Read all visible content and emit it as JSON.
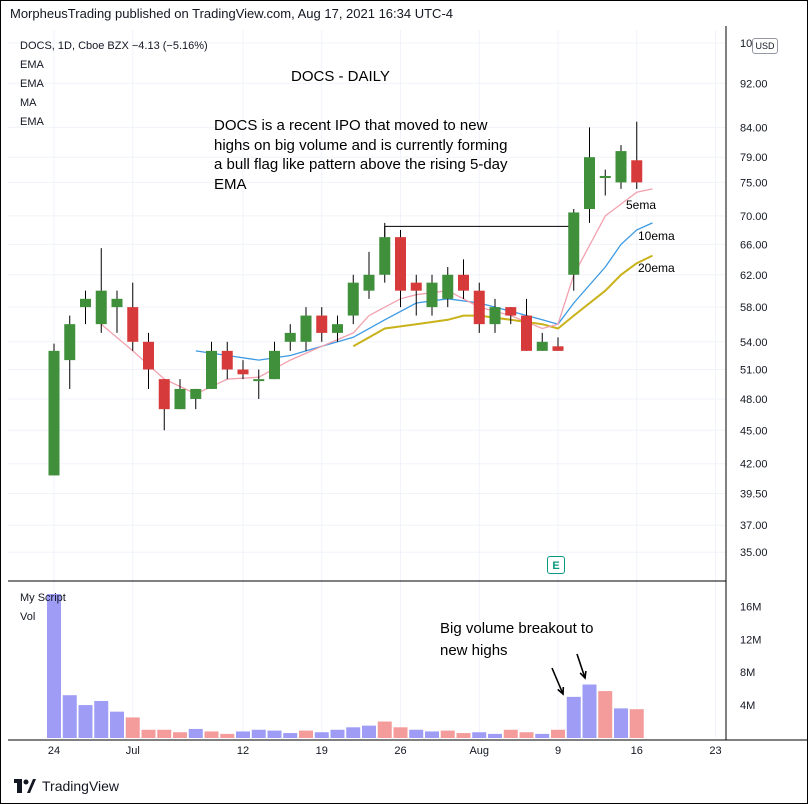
{
  "header": {
    "published": "MorpheusTrading published on TradingView.com, Aug 17, 2021 16:34 UTC-4"
  },
  "symbol": {
    "line": "DOCS, 1D, Cboe BZX  −4.13 (−5.16%)"
  },
  "indicators": [
    "EMA",
    "EMA",
    "MA",
    "EMA"
  ],
  "currency": "USD",
  "annotations": {
    "title": "DOCS - DAILY",
    "note": "DOCS is a recent IPO that moved to new highs on big volume and is currently forming a bull flag like pattern above the rising 5-day EMA",
    "volume_note": "Big volume breakout to new highs",
    "ema_labels": [
      "5ema",
      "10ema",
      "20ema"
    ]
  },
  "volume_pane": {
    "script_label": "My Script",
    "label": "Vol"
  },
  "earnings_marker": "E",
  "footer": {
    "brand": "TradingView"
  },
  "colors": {
    "up": "#3f8f3b",
    "down": "#d63a3a",
    "vol_up": "#9e9cf5",
    "vol_down": "#f49b9b",
    "ema5": "#f2a0ae",
    "ema10": "#3d9ae3",
    "ema20": "#c9b21a",
    "grid": "#f0f3fa"
  },
  "chart_data": {
    "type": "candlestick",
    "price_axis": {
      "ticks": [
        35.0,
        37.0,
        39.5,
        42.0,
        45.0,
        48.0,
        51.0,
        54.0,
        58.0,
        62.0,
        66.0,
        70.0,
        75.0,
        79.0,
        84.0,
        92.0,
        100.0
      ],
      "scale": "log"
    },
    "volume_axis": {
      "ticks": [
        "4M",
        "8M",
        "12M",
        "16M"
      ],
      "max": 17.5
    },
    "x_ticks": [
      "24",
      "Jul",
      "12",
      "19",
      "26",
      "Aug",
      "9",
      "16",
      "23"
    ],
    "x_tick_index": [
      0,
      5,
      12,
      17,
      22,
      27,
      32,
      37,
      42
    ],
    "candles": [
      {
        "o": 41,
        "h": 53.8,
        "l": 41,
        "c": 53
      },
      {
        "o": 52,
        "h": 57,
        "l": 49,
        "c": 56
      },
      {
        "o": 58,
        "h": 60,
        "l": 56,
        "c": 59
      },
      {
        "o": 56,
        "h": 65.5,
        "l": 55,
        "c": 60
      },
      {
        "o": 58,
        "h": 60,
        "l": 55,
        "c": 59
      },
      {
        "o": 58,
        "h": 61,
        "l": 53,
        "c": 54
      },
      {
        "o": 54,
        "h": 55,
        "l": 49,
        "c": 51
      },
      {
        "o": 50,
        "h": 50,
        "l": 45,
        "c": 47
      },
      {
        "o": 47,
        "h": 50,
        "l": 47,
        "c": 49
      },
      {
        "o": 48,
        "h": 49,
        "l": 47,
        "c": 49
      },
      {
        "o": 49,
        "h": 54,
        "l": 49,
        "c": 53
      },
      {
        "o": 53,
        "h": 54,
        "l": 50,
        "c": 51
      },
      {
        "o": 51,
        "h": 52,
        "l": 50,
        "c": 50.5
      },
      {
        "o": 50,
        "h": 51,
        "l": 48,
        "c": 50
      },
      {
        "o": 50,
        "h": 54,
        "l": 50,
        "c": 53
      },
      {
        "o": 54,
        "h": 56,
        "l": 53,
        "c": 55
      },
      {
        "o": 54,
        "h": 58,
        "l": 53,
        "c": 57
      },
      {
        "o": 57,
        "h": 58,
        "l": 54,
        "c": 55
      },
      {
        "o": 55,
        "h": 57,
        "l": 54,
        "c": 56
      },
      {
        "o": 57,
        "h": 62,
        "l": 56,
        "c": 61
      },
      {
        "o": 60,
        "h": 65,
        "l": 59,
        "c": 62
      },
      {
        "o": 62,
        "h": 69,
        "l": 61,
        "c": 67
      },
      {
        "o": 67,
        "h": 68,
        "l": 58,
        "c": 60
      },
      {
        "o": 61,
        "h": 62,
        "l": 57,
        "c": 60
      },
      {
        "o": 58,
        "h": 62,
        "l": 57,
        "c": 61
      },
      {
        "o": 59,
        "h": 63,
        "l": 58,
        "c": 62
      },
      {
        "o": 62,
        "h": 64,
        "l": 59,
        "c": 60
      },
      {
        "o": 60,
        "h": 61,
        "l": 55,
        "c": 56
      },
      {
        "o": 56,
        "h": 59,
        "l": 55,
        "c": 58
      },
      {
        "o": 58,
        "h": 58,
        "l": 56,
        "c": 57
      },
      {
        "o": 57,
        "h": 59,
        "l": 53,
        "c": 53
      },
      {
        "o": 53,
        "h": 55,
        "l": 53,
        "c": 54
      },
      {
        "o": 53.5,
        "h": 54.5,
        "l": 53,
        "c": 53
      },
      {
        "o": 62,
        "h": 71,
        "l": 60,
        "c": 70.5
      },
      {
        "o": 71,
        "h": 84,
        "l": 69,
        "c": 79
      },
      {
        "o": 76,
        "h": 77,
        "l": 73,
        "c": 76
      },
      {
        "o": 75,
        "h": 81,
        "l": 74,
        "c": 80
      },
      {
        "o": 78.5,
        "h": 85,
        "l": 74,
        "c": 75
      }
    ],
    "volume": [
      17.5,
      5.2,
      4.0,
      4.5,
      3.2,
      2.5,
      1.0,
      1.0,
      0.7,
      1.1,
      0.8,
      0.5,
      0.8,
      1.0,
      0.9,
      0.6,
      0.9,
      0.7,
      1.0,
      1.3,
      1.5,
      2.0,
      1.3,
      1.0,
      0.8,
      0.9,
      0.6,
      0.7,
      0.5,
      1.0,
      0.7,
      0.5,
      1.0,
      5.0,
      6.5,
      5.7,
      3.6,
      3.5
    ],
    "volume_up": [
      true,
      true,
      true,
      true,
      true,
      false,
      false,
      false,
      false,
      true,
      false,
      false,
      true,
      true,
      true,
      true,
      false,
      true,
      true,
      true,
      true,
      false,
      false,
      true,
      true,
      false,
      false,
      true,
      true,
      false,
      false,
      true,
      false,
      true,
      true,
      false,
      true,
      false
    ],
    "ema5": [
      [
        3,
        56
      ],
      [
        5,
        53
      ],
      [
        7,
        50
      ],
      [
        9,
        48.5
      ],
      [
        11,
        50
      ],
      [
        13,
        50.2
      ],
      [
        15,
        52
      ],
      [
        17,
        53.5
      ],
      [
        19,
        55
      ],
      [
        20,
        57
      ],
      [
        22,
        59
      ],
      [
        23,
        59.5
      ],
      [
        25,
        60
      ],
      [
        27,
        58
      ],
      [
        29,
        57
      ],
      [
        31,
        55.5
      ],
      [
        32,
        56
      ],
      [
        33,
        62
      ],
      [
        35,
        70
      ],
      [
        37,
        73.5
      ],
      [
        38,
        74
      ]
    ],
    "ema10": [
      [
        9,
        53
      ],
      [
        11,
        52.5
      ],
      [
        13,
        52
      ],
      [
        15,
        52.5
      ],
      [
        17,
        53.5
      ],
      [
        19,
        54.5
      ],
      [
        21,
        56.5
      ],
      [
        23,
        58.5
      ],
      [
        25,
        59
      ],
      [
        27,
        58.5
      ],
      [
        29,
        57.5
      ],
      [
        31,
        56.5
      ],
      [
        32,
        56
      ],
      [
        33,
        58.5
      ],
      [
        35,
        63
      ],
      [
        36,
        66
      ],
      [
        37,
        68
      ],
      [
        38,
        69
      ]
    ],
    "ema20": [
      [
        19,
        53.5
      ],
      [
        21,
        55.5
      ],
      [
        23,
        56
      ],
      [
        25,
        56.5
      ],
      [
        26,
        57
      ],
      [
        27,
        57
      ],
      [
        29,
        56.5
      ],
      [
        31,
        56
      ],
      [
        32,
        55.5
      ],
      [
        33,
        57
      ],
      [
        35,
        60
      ],
      [
        36,
        62
      ],
      [
        37,
        63.5
      ],
      [
        38,
        64.5
      ]
    ],
    "breakout_level": 68.5,
    "breakout_from": 21,
    "breakout_to": 33
  }
}
